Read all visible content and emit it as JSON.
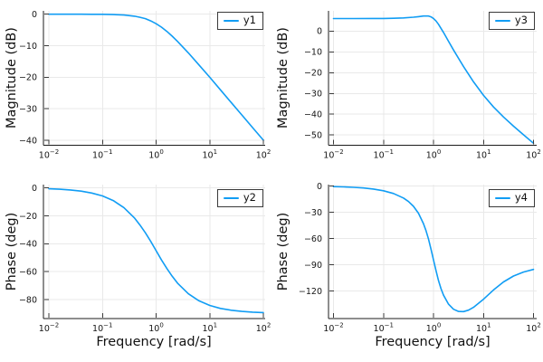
{
  "colors": {
    "line": "#119DF4",
    "grid": "#e9e9e9",
    "spine": "#1c1c1c",
    "tick": "#3a3a3a",
    "tick_text": "#151515",
    "legend_border": "#3a3a3a",
    "background": "#ffffff"
  },
  "x_axis": {
    "label": "Frequency [rad/s]",
    "tick_base": "10",
    "tick_exponents": [
      "−2",
      "−1",
      "0",
      "1",
      "2"
    ],
    "xlim_log": [
      -2,
      2
    ],
    "scale": "log",
    "grid": true
  },
  "chart_data": [
    {
      "type": "line",
      "position": "top-left",
      "legend": "y1",
      "ylabel": "Magnitude (dB)",
      "yticks": [
        0,
        -10,
        -20,
        -30,
        -40
      ],
      "ytick_labels": [
        "0",
        "−10",
        "−20",
        "−30",
        "−40"
      ],
      "ylim": [
        -41.6,
        1.06
      ],
      "x_log_range": [
        -2,
        2
      ],
      "curve": [
        [
          -2,
          0
        ],
        [
          -1.8,
          0
        ],
        [
          -1.6,
          0
        ],
        [
          -1.4,
          -0.01
        ],
        [
          -1.2,
          -0.02
        ],
        [
          -1,
          -0.04
        ],
        [
          -0.8,
          -0.11
        ],
        [
          -0.6,
          -0.27
        ],
        [
          -0.4,
          -0.64
        ],
        [
          -0.3,
          -0.97
        ],
        [
          -0.2,
          -1.42
        ],
        [
          -0.1,
          -2.12
        ],
        [
          0,
          -3.01
        ],
        [
          0.1,
          -4.12
        ],
        [
          0.2,
          -5.46
        ],
        [
          0.3,
          -6.97
        ],
        [
          0.4,
          -8.64
        ],
        [
          0.6,
          -12.27
        ],
        [
          0.8,
          -16.11
        ],
        [
          1,
          -20.04
        ],
        [
          1.2,
          -24.02
        ],
        [
          1.4,
          -28.01
        ],
        [
          1.6,
          -32
        ],
        [
          1.8,
          -36
        ],
        [
          2,
          -40
        ]
      ]
    },
    {
      "type": "line",
      "position": "top-right",
      "legend": "y3",
      "ylabel": "Magnitude (dB)",
      "yticks": [
        0,
        -10,
        -20,
        -30,
        -40,
        -50
      ],
      "ytick_labels": [
        "0",
        "−10",
        "−20",
        "−30",
        "−40",
        "−50"
      ],
      "ylim": [
        -54.9,
        9.7
      ],
      "x_log_range": [
        -2,
        2
      ],
      "curve": [
        [
          -2,
          6.02
        ],
        [
          -1.6,
          6.02
        ],
        [
          -1.2,
          6.04
        ],
        [
          -1,
          6.06
        ],
        [
          -0.8,
          6.13
        ],
        [
          -0.6,
          6.29
        ],
        [
          -0.4,
          6.64
        ],
        [
          -0.3,
          6.93
        ],
        [
          -0.2,
          7.23
        ],
        [
          -0.1,
          7.2
        ],
        [
          -0.05,
          6.83
        ],
        [
          0,
          6.06
        ],
        [
          0.05,
          4.84
        ],
        [
          0.1,
          3.24
        ],
        [
          0.2,
          -0.68
        ],
        [
          0.3,
          -4.9
        ],
        [
          0.4,
          -9.09
        ],
        [
          0.6,
          -17.08
        ],
        [
          0.8,
          -24.42
        ],
        [
          1,
          -30.93
        ],
        [
          1.2,
          -36.5
        ],
        [
          1.4,
          -41.33
        ],
        [
          1.6,
          -45.71
        ],
        [
          1.8,
          -49.87
        ],
        [
          2,
          -53.94
        ]
      ]
    },
    {
      "type": "line",
      "position": "bottom-left",
      "legend": "y2",
      "ylabel": "Phase (deg)",
      "yticks": [
        0,
        -20,
        -40,
        -60,
        -80
      ],
      "ytick_labels": [
        "0",
        "−20",
        "−40",
        "−60",
        "−80"
      ],
      "ylim": [
        -93.7,
        2.4
      ],
      "x_log_range": [
        -2,
        2
      ],
      "curve": [
        [
          -2,
          -0.57
        ],
        [
          -1.8,
          -0.91
        ],
        [
          -1.6,
          -1.44
        ],
        [
          -1.4,
          -2.28
        ],
        [
          -1.2,
          -3.61
        ],
        [
          -1,
          -5.71
        ],
        [
          -0.8,
          -9
        ],
        [
          -0.6,
          -14.1
        ],
        [
          -0.4,
          -21.7
        ],
        [
          -0.3,
          -26.6
        ],
        [
          -0.2,
          -32.2
        ],
        [
          -0.1,
          -38.4
        ],
        [
          0,
          -45
        ],
        [
          0.1,
          -51.6
        ],
        [
          0.2,
          -57.8
        ],
        [
          0.3,
          -63.4
        ],
        [
          0.4,
          -68.3
        ],
        [
          0.6,
          -75.9
        ],
        [
          0.8,
          -81
        ],
        [
          1,
          -84.3
        ],
        [
          1.2,
          -86.4
        ],
        [
          1.4,
          -87.7
        ],
        [
          1.6,
          -88.6
        ],
        [
          1.8,
          -89.1
        ],
        [
          2,
          -89.4
        ]
      ]
    },
    {
      "type": "line",
      "position": "bottom-right",
      "legend": "y4",
      "ylabel": "Phase (deg)",
      "yticks": [
        0,
        -30,
        -60,
        -90,
        -120
      ],
      "ytick_labels": [
        "0",
        "−30",
        "−60",
        "−90",
        "−120"
      ],
      "ylim": [
        -151.3,
        1.8
      ],
      "x_log_range": [
        -2,
        2
      ],
      "curve": [
        [
          -2,
          -0.52
        ],
        [
          -1.8,
          -0.82
        ],
        [
          -1.6,
          -1.3
        ],
        [
          -1.4,
          -2.06
        ],
        [
          -1.2,
          -3.27
        ],
        [
          -1,
          -5.2
        ],
        [
          -0.8,
          -8.33
        ],
        [
          -0.6,
          -13.56
        ],
        [
          -0.5,
          -17.55
        ],
        [
          -0.4,
          -23.02
        ],
        [
          -0.3,
          -30.9
        ],
        [
          -0.2,
          -42.74
        ],
        [
          -0.15,
          -50.75
        ],
        [
          -0.1,
          -60.5
        ],
        [
          -0.05,
          -71.9
        ],
        [
          0,
          -84.29
        ],
        [
          0.05,
          -96.6
        ],
        [
          0.1,
          -107.75
        ],
        [
          0.15,
          -117.2
        ],
        [
          0.2,
          -124.6
        ],
        [
          0.3,
          -134.9
        ],
        [
          0.4,
          -140.6
        ],
        [
          0.5,
          -143.1
        ],
        [
          0.6,
          -143.3
        ],
        [
          0.7,
          -141.7
        ],
        [
          0.8,
          -138.5
        ],
        [
          1,
          -129.2
        ],
        [
          1.2,
          -118.6
        ],
        [
          1.4,
          -109.4
        ],
        [
          1.6,
          -102.7
        ],
        [
          1.8,
          -98.1
        ],
        [
          2,
          -95.1
        ]
      ]
    }
  ]
}
